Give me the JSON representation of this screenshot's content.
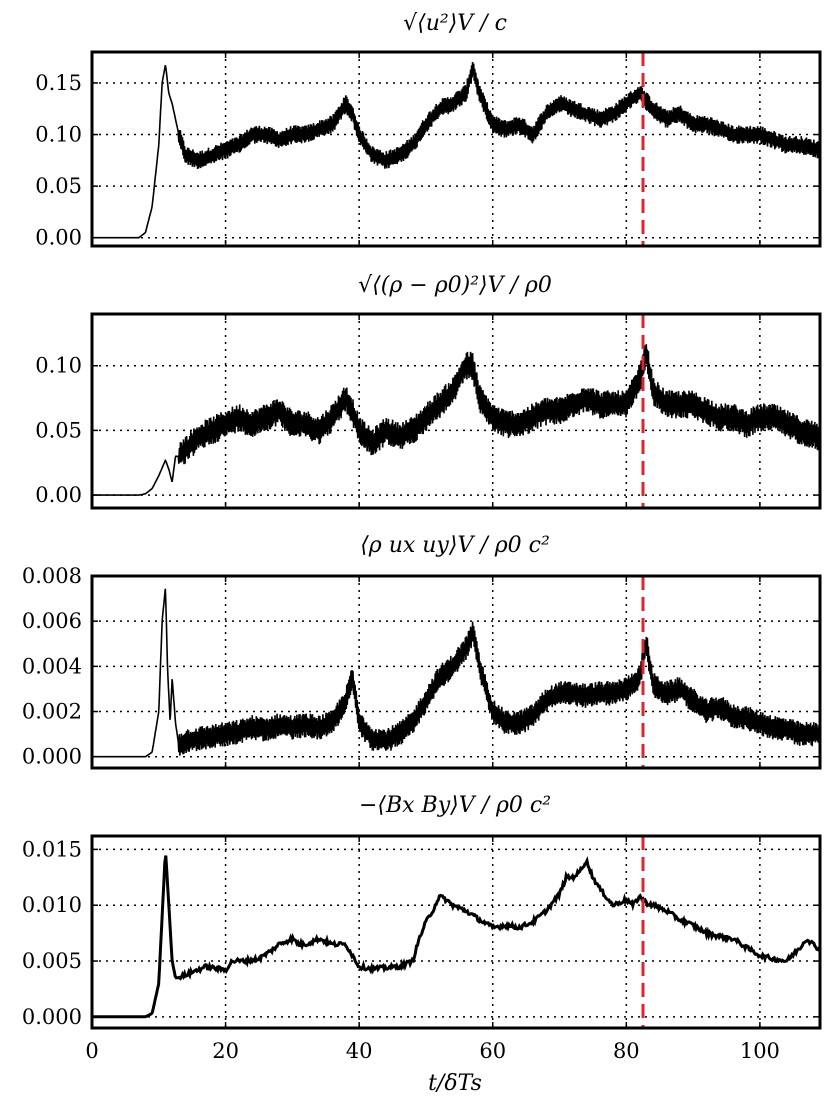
{
  "chart_data": [
    {
      "type": "line",
      "title": "√⟨u²⟩V / c",
      "xlim": [
        0,
        109
      ],
      "ylim": [
        -0.008,
        0.18
      ],
      "yticks": [
        0.0,
        0.05,
        0.1,
        0.15
      ],
      "ytick_labels": [
        "0.00",
        "0.05",
        "0.10",
        "0.15"
      ],
      "grid": true,
      "vline": 82.5,
      "noise_band": 0.018,
      "x": [
        0,
        7,
        8,
        9,
        10,
        10.5,
        11,
        11.5,
        12,
        13,
        14,
        16,
        18,
        20,
        22,
        24,
        26,
        28,
        30,
        32,
        34,
        36,
        38,
        39,
        40,
        42,
        44,
        46,
        48,
        50,
        52,
        54,
        56,
        57,
        58,
        60,
        62,
        64,
        66,
        68,
        70,
        72,
        74,
        76,
        78,
        80,
        82,
        84,
        86,
        88,
        90,
        92,
        94,
        96,
        98,
        100,
        102,
        104,
        106,
        109
      ],
      "values": [
        0.0,
        0.0,
        0.005,
        0.03,
        0.09,
        0.15,
        0.168,
        0.14,
        0.13,
        0.1,
        0.08,
        0.075,
        0.08,
        0.085,
        0.09,
        0.1,
        0.1,
        0.095,
        0.1,
        0.1,
        0.105,
        0.11,
        0.13,
        0.12,
        0.1,
        0.08,
        0.075,
        0.08,
        0.09,
        0.11,
        0.125,
        0.13,
        0.14,
        0.165,
        0.14,
        0.11,
        0.105,
        0.11,
        0.1,
        0.12,
        0.13,
        0.125,
        0.12,
        0.115,
        0.12,
        0.13,
        0.14,
        0.125,
        0.115,
        0.12,
        0.11,
        0.11,
        0.105,
        0.1,
        0.1,
        0.1,
        0.095,
        0.09,
        0.09,
        0.085
      ]
    },
    {
      "type": "line",
      "title": "√⟨(ρ − ρ0)²⟩V / ρ0",
      "xlim": [
        0,
        109
      ],
      "ylim": [
        -0.01,
        0.14
      ],
      "yticks": [
        0.0,
        0.05,
        0.1
      ],
      "ytick_labels": [
        "0.00",
        "0.05",
        "0.10"
      ],
      "grid": true,
      "vline": 82.5,
      "noise_band": 0.022,
      "x": [
        0,
        7,
        8,
        9,
        10,
        11,
        11.5,
        12,
        12.5,
        13,
        14,
        16,
        18,
        20,
        22,
        24,
        26,
        28,
        30,
        32,
        34,
        36,
        38,
        39,
        40,
        42,
        44,
        46,
        48,
        50,
        52,
        54,
        56,
        57,
        58,
        60,
        62,
        64,
        66,
        68,
        70,
        72,
        74,
        76,
        78,
        80,
        82,
        83,
        84,
        86,
        88,
        90,
        92,
        94,
        96,
        98,
        100,
        102,
        104,
        106,
        109
      ],
      "values": [
        0.0,
        0.0,
        0.001,
        0.005,
        0.015,
        0.027,
        0.02,
        0.01,
        0.03,
        0.03,
        0.035,
        0.045,
        0.05,
        0.055,
        0.06,
        0.055,
        0.06,
        0.065,
        0.055,
        0.055,
        0.05,
        0.06,
        0.075,
        0.065,
        0.05,
        0.04,
        0.05,
        0.045,
        0.05,
        0.06,
        0.07,
        0.08,
        0.1,
        0.1,
        0.075,
        0.06,
        0.055,
        0.055,
        0.06,
        0.065,
        0.065,
        0.07,
        0.075,
        0.07,
        0.07,
        0.07,
        0.09,
        0.11,
        0.08,
        0.07,
        0.07,
        0.07,
        0.065,
        0.06,
        0.06,
        0.055,
        0.06,
        0.06,
        0.055,
        0.05,
        0.045
      ]
    },
    {
      "type": "line",
      "title": "⟨ρ ux uy⟩V / ρ0 c²",
      "xlim": [
        0,
        109
      ],
      "ylim": [
        -0.0005,
        0.008
      ],
      "yticks": [
        0.0,
        0.002,
        0.004,
        0.006,
        0.008
      ],
      "ytick_labels": [
        "0.000",
        "0.002",
        "0.004",
        "0.006",
        "0.008"
      ],
      "grid": true,
      "vline": 82.5,
      "noise_band": 0.0011,
      "x": [
        0,
        8,
        9,
        10,
        10.5,
        11,
        11.3,
        11.7,
        12,
        12.5,
        13,
        14,
        16,
        18,
        20,
        22,
        24,
        26,
        28,
        30,
        32,
        34,
        36,
        38,
        39,
        40,
        42,
        44,
        46,
        48,
        50,
        52,
        54,
        56,
        57,
        58,
        60,
        62,
        64,
        66,
        68,
        70,
        72,
        74,
        76,
        78,
        80,
        82,
        83,
        84,
        86,
        88,
        90,
        92,
        94,
        96,
        98,
        100,
        102,
        104,
        106,
        109
      ],
      "values": [
        0.0,
        0.0,
        0.0002,
        0.002,
        0.006,
        0.0075,
        0.004,
        0.0015,
        0.0035,
        0.0015,
        0.0005,
        0.0007,
        0.0008,
        0.0009,
        0.001,
        0.0011,
        0.0013,
        0.0012,
        0.0014,
        0.0013,
        0.0014,
        0.0013,
        0.0015,
        0.0025,
        0.0035,
        0.0015,
        0.0008,
        0.0007,
        0.001,
        0.0015,
        0.0025,
        0.0035,
        0.004,
        0.0048,
        0.0055,
        0.004,
        0.002,
        0.0015,
        0.0015,
        0.0018,
        0.0025,
        0.0028,
        0.0028,
        0.0027,
        0.0028,
        0.0028,
        0.003,
        0.0035,
        0.005,
        0.0032,
        0.0028,
        0.003,
        0.0025,
        0.002,
        0.0022,
        0.0018,
        0.0017,
        0.0015,
        0.0013,
        0.0012,
        0.001,
        0.001
      ]
    },
    {
      "type": "line",
      "title": "−⟨Bx By⟩V / ρ0 c²",
      "xlim": [
        0,
        109
      ],
      "ylim": [
        -0.001,
        0.0162
      ],
      "yticks": [
        0.0,
        0.005,
        0.01,
        0.015
      ],
      "ytick_labels": [
        "0.000",
        "0.005",
        "0.010",
        "0.015"
      ],
      "grid": true,
      "vline": 82.5,
      "noise_band": 0,
      "xlabel": "t/δTs",
      "xticks": [
        0,
        20,
        40,
        60,
        80,
        100
      ],
      "xtick_labels": [
        "0",
        "20",
        "40",
        "60",
        "80",
        "100"
      ],
      "x": [
        0,
        8,
        9,
        10,
        10.5,
        11,
        11.5,
        12,
        12.5,
        13,
        15,
        17,
        19,
        20,
        21,
        23,
        25,
        27,
        28,
        30,
        31,
        32,
        34,
        36,
        38,
        40,
        42,
        44,
        46,
        48,
        49,
        50,
        51,
        52,
        53,
        54,
        56,
        58,
        60,
        62,
        64,
        66,
        68,
        70,
        71,
        72,
        73,
        74,
        75,
        76,
        78,
        80,
        81,
        82,
        83,
        84,
        86,
        88,
        90,
        92,
        94,
        96,
        98,
        100,
        102,
        104,
        106,
        107,
        108,
        109
      ],
      "values": [
        0.0,
        0.0,
        0.0003,
        0.003,
        0.009,
        0.015,
        0.01,
        0.005,
        0.0035,
        0.0035,
        0.004,
        0.0045,
        0.0043,
        0.0042,
        0.005,
        0.005,
        0.0052,
        0.006,
        0.0065,
        0.007,
        0.0065,
        0.0065,
        0.007,
        0.0065,
        0.0065,
        0.0045,
        0.0043,
        0.0044,
        0.0045,
        0.005,
        0.007,
        0.0085,
        0.0095,
        0.0108,
        0.0105,
        0.01,
        0.0095,
        0.0087,
        0.008,
        0.0082,
        0.008,
        0.0085,
        0.0095,
        0.011,
        0.0125,
        0.0125,
        0.013,
        0.014,
        0.0125,
        0.0115,
        0.01,
        0.0105,
        0.01,
        0.0108,
        0.0102,
        0.01,
        0.0095,
        0.0087,
        0.0082,
        0.0075,
        0.0072,
        0.007,
        0.0062,
        0.0055,
        0.0052,
        0.005,
        0.0062,
        0.007,
        0.0065,
        0.006
      ]
    }
  ]
}
